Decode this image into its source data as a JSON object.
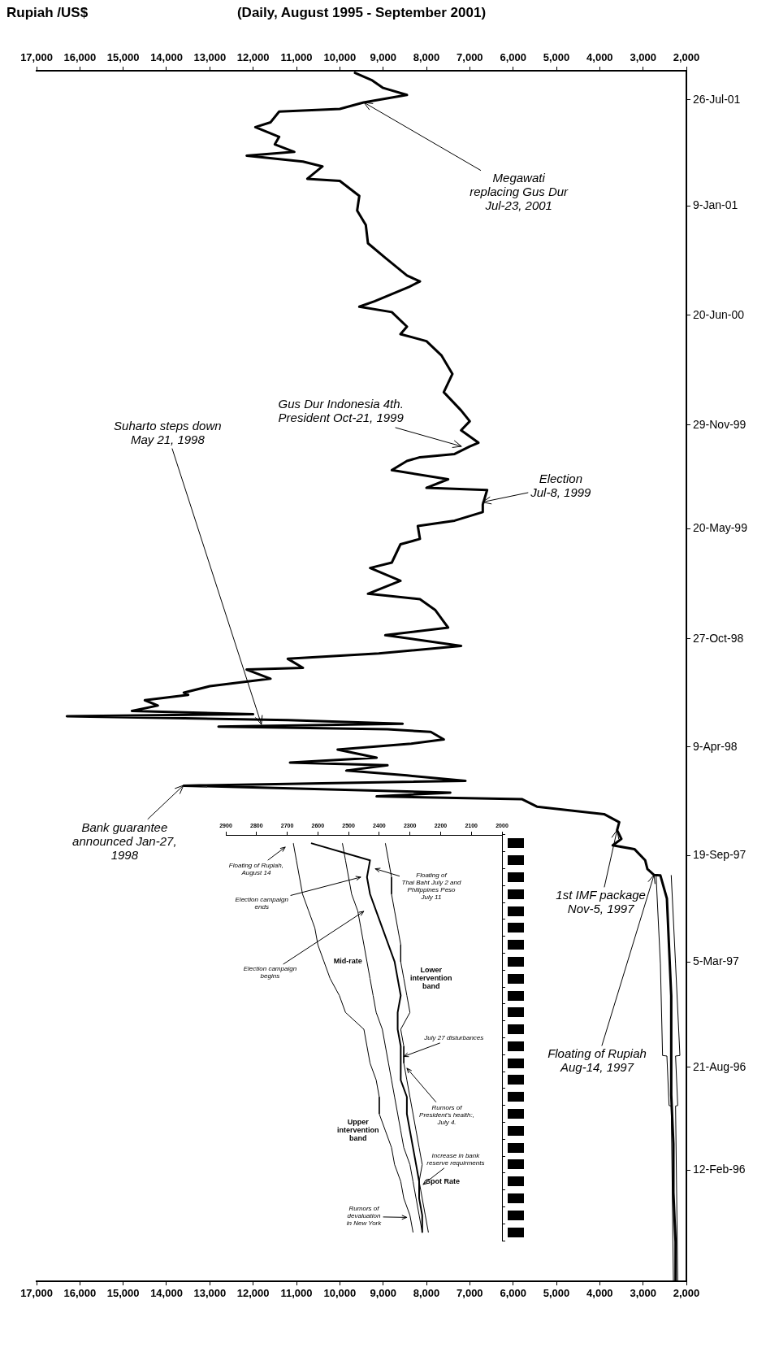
{
  "chart_data": [
    {
      "type": "line",
      "orientation": "horizontal",
      "title": "(Daily, August 1995 - September 2001)",
      "x2label": "Rupiah /US$",
      "grid": false,
      "marker": "none",
      "ylim": [
        "1995-07-20",
        "2001-09-18"
      ],
      "yticks": [
        {
          "value": "1996-02-12",
          "label": "12-Feb-96"
        },
        {
          "value": "1996-08-21",
          "label": "21-Aug-96"
        },
        {
          "value": "1997-03-05",
          "label": "5-Mar-97"
        },
        {
          "value": "1997-09-19",
          "label": "19-Sep-97"
        },
        {
          "value": "1998-04-09",
          "label": "9-Apr-98"
        },
        {
          "value": "1998-10-27",
          "label": "27-Oct-98"
        },
        {
          "value": "1999-05-20",
          "label": "20-May-99"
        },
        {
          "value": "1999-11-29",
          "label": "29-Nov-99"
        },
        {
          "value": "2000-06-20",
          "label": "20-Jun-00"
        },
        {
          "value": "2001-01-09",
          "label": "9-Jan-01"
        },
        {
          "value": "2001-07-26",
          "label": "26-Jul-01"
        }
      ],
      "xlim": [
        17000,
        2000
      ],
      "xticks": [
        {
          "value": 2000,
          "label": "2,000"
        },
        {
          "value": 3000,
          "label": "3,000"
        },
        {
          "value": 4000,
          "label": "4,000"
        },
        {
          "value": 5000,
          "label": "5,000"
        },
        {
          "value": 6000,
          "label": "6,000"
        },
        {
          "value": 7000,
          "label": "7,000"
        },
        {
          "value": 8000,
          "label": "8,000"
        },
        {
          "value": 9000,
          "label": "9,000"
        },
        {
          "value": 10000,
          "label": "10,000"
        },
        {
          "value": 11000,
          "label": "11,000"
        },
        {
          "value": 12000,
          "label": "12,000"
        },
        {
          "value": 13000,
          "label": "13,000"
        },
        {
          "value": 14000,
          "label": "14,000"
        },
        {
          "value": 15000,
          "label": "15,000"
        },
        {
          "value": 16000,
          "label": "16,000"
        },
        {
          "value": 17000,
          "label": "17,000"
        }
      ],
      "x2lim": [
        17000,
        2000
      ],
      "x2ticks": [
        {
          "value": 2000,
          "label": "2,000"
        },
        {
          "value": 3000,
          "label": "3,000"
        },
        {
          "value": 4000,
          "label": "4,000"
        },
        {
          "value": 5000,
          "label": "5,000"
        },
        {
          "value": 6000,
          "label": "6,000"
        },
        {
          "value": 7000,
          "label": "7,000"
        },
        {
          "value": 8000,
          "label": "8,000"
        },
        {
          "value": 9000,
          "label": "9,000"
        },
        {
          "value": 10000,
          "label": "10,000"
        },
        {
          "value": 11000,
          "label": "11,000"
        },
        {
          "value": 12000,
          "label": "12,000"
        },
        {
          "value": 13000,
          "label": "13,000"
        },
        {
          "value": 14000,
          "label": "14,000"
        },
        {
          "value": 15000,
          "label": "15,000"
        },
        {
          "value": 16000,
          "label": "16,000"
        },
        {
          "value": 17000,
          "label": "17,000"
        }
      ],
      "series": [
        {
          "color": "#000000",
          "x": [
            "1995-07-21",
            "1995-10-01",
            "1996-01-01",
            "1996-04-01",
            "1996-07-01",
            "1996-10-01",
            "1997-01-01",
            "1997-04-01",
            "1997-07-01",
            "1997-08-13",
            "1997-08-14",
            "1997-08-25",
            "1997-09-10",
            "1997-10-01",
            "1997-10-08",
            "1997-10-20",
            "1997-11-05",
            "1997-11-20",
            "1997-12-05",
            "1997-12-12",
            "1997-12-19",
            "1998-01-02",
            "1998-01-07",
            "1998-01-14",
            "1998-01-27",
            "1998-02-05",
            "1998-02-15",
            "1998-02-24",
            "1998-03-06",
            "1998-03-11",
            "1998-03-20",
            "1998-04-04",
            "1998-04-15",
            "1998-04-23",
            "1998-05-07",
            "1998-05-12",
            "1998-05-17",
            "1998-05-22",
            "1998-05-29",
            "1998-06-05",
            "1998-06-09",
            "1998-06-15",
            "1998-06-25",
            "1998-07-05",
            "1998-07-15",
            "1998-07-19",
            "1998-07-31",
            "1998-08-14",
            "1998-08-31",
            "1998-09-03",
            "1998-09-20",
            "1998-09-30",
            "1998-10-14",
            "1998-11-03",
            "1998-11-17",
            "1998-12-20",
            "1999-01-09",
            "1999-01-19",
            "1999-02-12",
            "1999-03-08",
            "1999-03-18",
            "1999-04-21",
            "1999-05-01",
            "1999-05-25",
            "1999-06-04",
            "1999-06-20",
            "1999-07-04",
            "1999-07-31",
            "1999-08-04",
            "1999-08-20",
            "1999-09-06",
            "1999-09-23",
            "1999-09-30",
            "1999-10-06",
            "1999-10-20",
            "1999-10-27",
            "1999-11-19",
            "1999-12-06",
            "1999-12-26",
            "2000-01-29",
            "2000-03-03",
            "2000-04-06",
            "2000-05-03",
            "2000-05-16",
            "2000-05-30",
            "2000-06-26",
            "2000-07-06",
            "2000-07-16",
            "2000-08-12",
            "2000-08-22",
            "2000-09-02",
            "2000-10-05",
            "2000-11-01",
            "2000-12-05",
            "2001-01-01",
            "2001-01-28",
            "2001-02-25",
            "2001-03-01",
            "2001-03-24",
            "2001-04-02",
            "2001-04-13",
            "2001-04-20",
            "2001-05-04",
            "2001-05-18",
            "2001-06-05",
            "2001-06-14",
            "2001-07-04",
            "2001-07-09",
            "2001-07-21",
            "2001-08-04",
            "2001-08-17",
            "2001-08-31",
            "2001-09-14"
          ],
          "values": [
            2250,
            2250,
            2300,
            2300,
            2350,
            2350,
            2350,
            2400,
            2450,
            2600,
            2750,
            2900,
            2950,
            3200,
            3700,
            3500,
            3600,
            3550,
            3900,
            4700,
            5450,
            5800,
            9150,
            7450,
            13600,
            7100,
            8450,
            9850,
            8900,
            11150,
            9150,
            10050,
            8350,
            7600,
            7900,
            8900,
            12800,
            8550,
            11200,
            16300,
            12000,
            14800,
            14200,
            14500,
            13500,
            13600,
            13000,
            11600,
            12150,
            10850,
            11200,
            9100,
            7200,
            8950,
            7500,
            7800,
            8150,
            9350,
            8600,
            9300,
            8800,
            8600,
            8150,
            8200,
            7350,
            6700,
            6700,
            6600,
            8000,
            7500,
            8800,
            8450,
            8150,
            7350,
            7000,
            6800,
            7200,
            7000,
            7200,
            7600,
            7400,
            7650,
            8000,
            8600,
            8450,
            8800,
            9550,
            9200,
            8400,
            8150,
            8450,
            8950,
            9350,
            9400,
            9600,
            9550,
            10000,
            10750,
            10400,
            10850,
            12150,
            11050,
            11500,
            11400,
            11950,
            11600,
            11400,
            10000,
            9450,
            8450,
            9000,
            9250,
            9650
          ]
        },
        {
          "color": "#000000",
          "x": [
            "1995-07-21",
            "1996-06-10",
            "1996-06-11",
            "1996-09-11",
            "1996-09-12",
            "1997-03-01",
            "1997-08-13"
          ],
          "values": [
            2300,
            2350,
            2400,
            2450,
            2550,
            2600,
            2700
          ]
        },
        {
          "color": "#000000",
          "x": [
            "1995-07-21",
            "1996-06-10",
            "1996-06-11",
            "1996-09-11",
            "1996-09-12",
            "1997-03-01",
            "1997-08-13"
          ],
          "values": [
            2200,
            2250,
            2200,
            2250,
            2150,
            2250,
            2350
          ]
        }
      ],
      "annotations": [
        {
          "text": "Floating of Rupiah\nAug-14, 1997",
          "y": "1997-08-14",
          "x": 2750
        },
        {
          "text": "1st IMF package\nNov-5, 1997",
          "y": "1997-11-05",
          "x": 3600
        },
        {
          "text": "Bank guarantee\nannounced Jan-27,\n1998",
          "y": "1998-01-27",
          "x": 13600
        },
        {
          "text": "Suharto steps down\nMay 21, 1998",
          "y": "1998-05-21",
          "x": 11800
        },
        {
          "text": "Election\nJul-8, 1999",
          "y": "1999-07-08",
          "x": 6700
        },
        {
          "text": "Gus Dur Indonesia 4th.\nPresident Oct-21, 1999",
          "y": "1999-10-21",
          "x": 7200
        },
        {
          "text": "Megawati\nreplacing Gus Dur\nJul-23, 2001",
          "y": "2001-07-21",
          "x": 9450
        }
      ]
    },
    {
      "type": "line",
      "orientation": "horizontal",
      "tick_labels": "x",
      "marker": "none",
      "categories": [
        null,
        null,
        null,
        null,
        null,
        null,
        null,
        null,
        null,
        null,
        null,
        null,
        null,
        null,
        null,
        null,
        null,
        null,
        null,
        null,
        null,
        null,
        null,
        null
      ],
      "xlim": [
        2900,
        2000
      ],
      "xticks": [
        2000,
        2100,
        2200,
        2300,
        2400,
        2500,
        2600,
        2700,
        2800,
        2900
      ],
      "series": [
        {
          "name": "Spot Rate",
          "color": "#000000",
          "values": [
            2620,
            2430,
            2440,
            2430,
            2410,
            2390,
            2370,
            2350,
            2340,
            2330,
            2340,
            2340,
            2330,
            2330,
            2330,
            2310,
            2310,
            2300,
            2290,
            2280,
            2270,
            2270,
            2260,
            2260
          ]
        },
        {
          "name": "Mid-rate",
          "color": "#000000",
          "values": [
            2520,
            2510,
            2500,
            2490,
            2470,
            2460,
            2450,
            2440,
            2430,
            2420,
            2410,
            2390,
            2380,
            2370,
            2360,
            2350,
            2340,
            2330,
            2320,
            2300,
            2290,
            2280,
            2270,
            2260
          ]
        },
        {
          "name": "Upper\nintervention\nband",
          "color": "#000000",
          "values": [
            2680,
            2670,
            2660,
            2650,
            2630,
            2610,
            2600,
            2580,
            2560,
            2530,
            2510,
            2450,
            2440,
            2430,
            2410,
            2400,
            2400,
            2380,
            2360,
            2350,
            2330,
            2320,
            2300,
            2290
          ]
        },
        {
          "name": "Lower\nintervention\nband",
          "color": "#000000",
          "values": [
            2380,
            2370,
            2360,
            2360,
            2350,
            2340,
            2330,
            2330,
            2320,
            2310,
            2300,
            2330,
            2320,
            2320,
            2310,
            2300,
            2290,
            2280,
            2270,
            2260,
            2270,
            2260,
            2250,
            2240
          ]
        }
      ],
      "annotations": [
        "Floating of Rupiah,\nAugust 14",
        "Election campaign\nends",
        "Election campaign\nbegins",
        "Floating of\nThai Baht July 2 and\nPhilippines Peso\nJuly 11",
        "July 27 disturbances",
        "Rumors of\nPresident's health:,\nJuly 4.",
        "Increase in bank\nreserve requirments",
        "Rumors of\ndevaluation\nin New York"
      ]
    }
  ]
}
